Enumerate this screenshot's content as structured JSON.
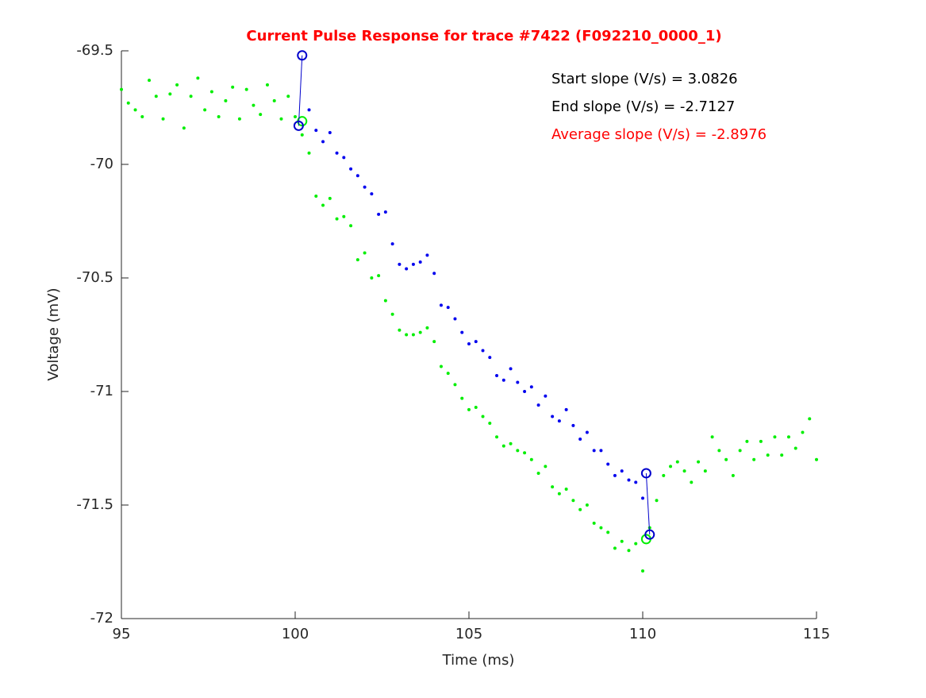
{
  "chart_data": {
    "type": "scatter",
    "title": "Current Pulse Response for trace #7422 (F092210_0000_1)",
    "title_color": "#ff0000",
    "xlabel": "Time (ms)",
    "ylabel": "Voltage (mV)",
    "xlim": [
      95,
      115
    ],
    "ylim": [
      -72,
      -69.5
    ],
    "xticks": [
      95,
      100,
      105,
      110,
      115
    ],
    "yticks": [
      -72,
      -71.5,
      -71,
      -70.5,
      -70,
      -69.5
    ],
    "annotations": [
      {
        "text": "Start slope (V/s) = 3.0826",
        "color": "#000000"
      },
      {
        "text": "End slope (V/s) = -2.7127",
        "color": "#000000"
      },
      {
        "text": "Average slope (V/s) = -2.8976",
        "color": "#ff0000"
      }
    ],
    "series": [
      {
        "color": "#00ee00",
        "style": "dot",
        "x": [
          95.0,
          95.2,
          95.4,
          95.6,
          95.8,
          96.0,
          96.2,
          96.4,
          96.6,
          96.8,
          97.0,
          97.2,
          97.4,
          97.6,
          97.8,
          98.0,
          98.2,
          98.4,
          98.6,
          98.8,
          99.0,
          99.2,
          99.4,
          99.6,
          99.8,
          100.0,
          100.2,
          100.4,
          100.6,
          100.8,
          101.0,
          101.2,
          101.4,
          101.6,
          101.8,
          102.0,
          102.2,
          102.4,
          102.6,
          102.8,
          103.0,
          103.2,
          103.4,
          103.6,
          103.8,
          104.0,
          104.2,
          104.4,
          104.6,
          104.8,
          105.0,
          105.2,
          105.4,
          105.6,
          105.8,
          106.0,
          106.2,
          106.4,
          106.6,
          106.8,
          107.0,
          107.2,
          107.4,
          107.6,
          107.8,
          108.0,
          108.2,
          108.4,
          108.6,
          108.8,
          109.0,
          109.2,
          109.4,
          109.6,
          109.8,
          110.0,
          110.2,
          110.4,
          110.6,
          110.8,
          111.0,
          111.2,
          111.4,
          111.6,
          111.8,
          112.0,
          112.2,
          112.4,
          112.6,
          112.8,
          113.0,
          113.2,
          113.4,
          113.6,
          113.8,
          114.0,
          114.2,
          114.4,
          114.6,
          114.8,
          115.0
        ],
        "values": [
          -69.67,
          -69.73,
          -69.76,
          -69.79,
          -69.63,
          -69.7,
          -69.8,
          -69.69,
          -69.65,
          -69.84,
          -69.7,
          -69.62,
          -69.76,
          -69.68,
          -69.79,
          -69.72,
          -69.66,
          -69.8,
          -69.67,
          -69.74,
          -69.78,
          -69.65,
          -69.72,
          -69.8,
          -69.7,
          -69.79,
          -69.87,
          -69.95,
          -70.14,
          -70.18,
          -70.15,
          -70.24,
          -70.23,
          -70.27,
          -70.42,
          -70.39,
          -70.5,
          -70.49,
          -70.6,
          -70.66,
          -70.73,
          -70.75,
          -70.75,
          -70.74,
          -70.72,
          -70.78,
          -70.89,
          -70.92,
          -70.97,
          -71.03,
          -71.08,
          -71.07,
          -71.11,
          -71.14,
          -71.2,
          -71.24,
          -71.23,
          -71.26,
          -71.27,
          -71.3,
          -71.36,
          -71.33,
          -71.42,
          -71.45,
          -71.43,
          -71.48,
          -71.52,
          -71.5,
          -71.58,
          -71.6,
          -71.62,
          -71.69,
          -71.66,
          -71.7,
          -71.67,
          -71.79,
          -71.6,
          -71.48,
          -71.37,
          -71.33,
          -71.31,
          -71.35,
          -71.4,
          -71.31,
          -71.35,
          -71.2,
          -71.26,
          -71.3,
          -71.37,
          -71.26,
          -71.22,
          -71.3,
          -71.22,
          -71.28,
          -71.2,
          -71.28,
          -71.2,
          -71.25,
          -71.18,
          -71.12,
          -71.3
        ]
      },
      {
        "color": "#0000ee",
        "style": "dot",
        "x": [
          100.4,
          100.6,
          100.8,
          101.0,
          101.2,
          101.4,
          101.6,
          101.8,
          102.0,
          102.2,
          102.4,
          102.6,
          102.8,
          103.0,
          103.2,
          103.4,
          103.6,
          103.8,
          104.0,
          104.2,
          104.4,
          104.6,
          104.8,
          105.0,
          105.2,
          105.4,
          105.6,
          105.8,
          106.0,
          106.2,
          106.4,
          106.6,
          106.8,
          107.0,
          107.2,
          107.4,
          107.6,
          107.8,
          108.0,
          108.2,
          108.4,
          108.6,
          108.8,
          109.0,
          109.2,
          109.4,
          109.6,
          109.8,
          110.0
        ],
        "values": [
          -69.76,
          -69.85,
          -69.9,
          -69.86,
          -69.95,
          -69.97,
          -70.02,
          -70.05,
          -70.1,
          -70.13,
          -70.22,
          -70.21,
          -70.35,
          -70.44,
          -70.46,
          -70.44,
          -70.43,
          -70.4,
          -70.48,
          -70.62,
          -70.63,
          -70.68,
          -70.74,
          -70.79,
          -70.78,
          -70.82,
          -70.85,
          -70.93,
          -70.95,
          -70.9,
          -70.96,
          -71.0,
          -70.98,
          -71.06,
          -71.02,
          -71.11,
          -71.13,
          -71.08,
          -71.15,
          -71.21,
          -71.18,
          -71.26,
          -71.26,
          -71.32,
          -71.37,
          -71.35,
          -71.39,
          -71.4,
          -71.47
        ]
      },
      {
        "color": "#00ee00",
        "style": "circle",
        "x": [
          100.2,
          110.1
        ],
        "values": [
          -69.81,
          -71.65
        ]
      },
      {
        "color": "#0000cc",
        "style": "circle-line",
        "x": [
          100.2,
          100.1
        ],
        "values": [
          -69.52,
          -69.83
        ]
      },
      {
        "color": "#0000cc",
        "style": "circle-line",
        "x": [
          110.1,
          110.2
        ],
        "values": [
          -71.36,
          -71.63
        ]
      }
    ]
  }
}
